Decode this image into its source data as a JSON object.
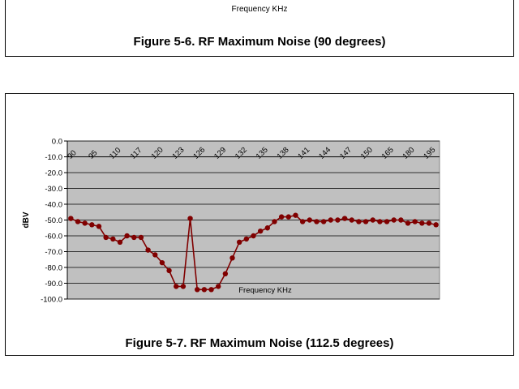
{
  "top_figure": {
    "xlabel": "Frequency KHz",
    "caption": "Figure 5-6. RF Maximum Noise (90 degrees)"
  },
  "bottom_figure": {
    "caption": "Figure 5-7. RF Maximum Noise (112.5 degrees)"
  },
  "chart_data": {
    "type": "line",
    "xlabel": "Frequency KHz",
    "ylabel": "dBV",
    "ylim": [
      -100,
      0
    ],
    "y_ticks": [
      "0.0",
      "-10.0",
      "-20.0",
      "-30.0",
      "-40.0",
      "-50.0",
      "-60.0",
      "-70.0",
      "-80.0",
      "-90.0",
      "-100.0"
    ],
    "x_tick_labels": [
      "90",
      "95",
      "110",
      "117",
      "120",
      "123",
      "126",
      "129",
      "132",
      "135",
      "138",
      "141",
      "144",
      "147",
      "150",
      "165",
      "180",
      "195"
    ],
    "grid": true,
    "plot_background": "#c0c0c0",
    "series_color": "#800000",
    "series": [
      {
        "values": [
          -49,
          -51,
          -52,
          -53,
          -54,
          -61,
          -62,
          -64,
          -60,
          -61,
          -61,
          -69,
          -72,
          -77,
          -82,
          -92,
          -92,
          -49,
          -94,
          -94,
          -94,
          -92,
          -84,
          -74,
          -64,
          -62,
          -60,
          -57,
          -55,
          -51,
          -48,
          -48,
          -47,
          -51,
          -50,
          -51,
          -51,
          -50,
          -50,
          -49,
          -50,
          -51,
          -51,
          -50,
          -51,
          -51,
          -50,
          -50,
          -52,
          -51,
          -52,
          -52,
          -53
        ]
      }
    ]
  }
}
